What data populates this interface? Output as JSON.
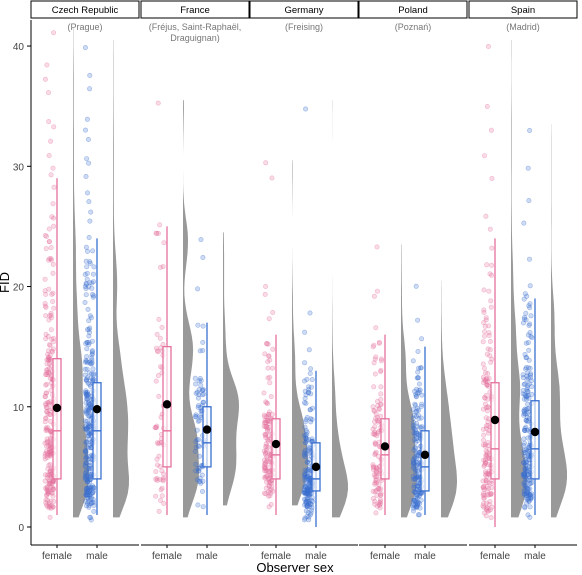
{
  "chart_data": {
    "type": "raincloud",
    "title": "",
    "xlabel": "Observer sex",
    "ylabel": "FID",
    "ylim": [
      0,
      42
    ],
    "yticks": [
      0,
      10,
      20,
      30,
      40
    ],
    "categories": [
      "female",
      "male"
    ],
    "colors": {
      "female": "#e5719d",
      "male": "#3a6fd0",
      "mean_dot": "#000000",
      "density": "#999999"
    },
    "grid": false,
    "panels": [
      {
        "country": "Czech Republic",
        "city": "(Prague)",
        "groups": [
          {
            "sex": "female",
            "n": 230,
            "lo": 1,
            "hi": 29,
            "q1": 4,
            "median": 8,
            "q3": 14,
            "mean": 9.9,
            "outliers": [
              30,
              31,
              32,
              33,
              34,
              36,
              37,
              38,
              41
            ]
          },
          {
            "sex": "male",
            "n": 280,
            "lo": 1,
            "hi": 24,
            "q1": 4,
            "median": 8,
            "q3": 12,
            "mean": 9.8,
            "outliers": [
              25,
              26,
              27,
              28,
              29,
              30,
              31,
              32,
              33,
              34,
              36,
              38,
              40
            ]
          }
        ]
      },
      {
        "country": "France",
        "city": "(Fréjus, Saint-Raphaël,\nDraguignan)",
        "groups": [
          {
            "sex": "female",
            "n": 60,
            "lo": 1,
            "hi": 25,
            "q1": 5,
            "median": 8,
            "q3": 15,
            "mean": 10.2,
            "outliers": [
              35
            ]
          },
          {
            "sex": "male",
            "n": 70,
            "lo": 1,
            "hi": 17,
            "q1": 5,
            "median": 7,
            "q3": 10,
            "mean": 8.1,
            "outliers": [
              20,
              22,
              24
            ]
          }
        ]
      },
      {
        "country": "Germany",
        "city": "(Freising)",
        "groups": [
          {
            "sex": "female",
            "n": 130,
            "lo": 1,
            "hi": 16,
            "q1": 4,
            "median": 6,
            "q3": 9,
            "mean": 6.9,
            "outliers": [
              17,
              18,
              19,
              20,
              29,
              30
            ]
          },
          {
            "sex": "male",
            "n": 180,
            "lo": 0,
            "hi": 13,
            "q1": 3,
            "median": 4,
            "q3": 7,
            "mean": 5.0,
            "outliers": [
              14,
              15,
              16,
              18,
              35
            ]
          }
        ]
      },
      {
        "country": "Poland",
        "city": "(Poznań)",
        "groups": [
          {
            "sex": "female",
            "n": 110,
            "lo": 1,
            "hi": 16,
            "q1": 4,
            "median": 6,
            "q3": 9,
            "mean": 6.7,
            "outliers": [
              17,
              19,
              20,
              23
            ]
          },
          {
            "sex": "male",
            "n": 170,
            "lo": 1,
            "hi": 15,
            "q1": 3,
            "median": 5,
            "q3": 8,
            "mean": 6.0,
            "outliers": [
              16,
              17,
              20
            ]
          }
        ]
      },
      {
        "country": "Spain",
        "city": "(Madrid)",
        "groups": [
          {
            "sex": "female",
            "n": 150,
            "lo": 0,
            "hi": 24,
            "q1": 4,
            "median": 6.5,
            "q3": 12,
            "mean": 8.9,
            "outliers": [
              25,
              26,
              29,
              31,
              33,
              35,
              40
            ]
          },
          {
            "sex": "male",
            "n": 200,
            "lo": 1,
            "hi": 19,
            "q1": 4,
            "median": 6.5,
            "q3": 10.5,
            "mean": 7.9,
            "outliers": [
              20,
              22,
              25,
              27,
              30,
              33
            ]
          }
        ]
      }
    ]
  }
}
